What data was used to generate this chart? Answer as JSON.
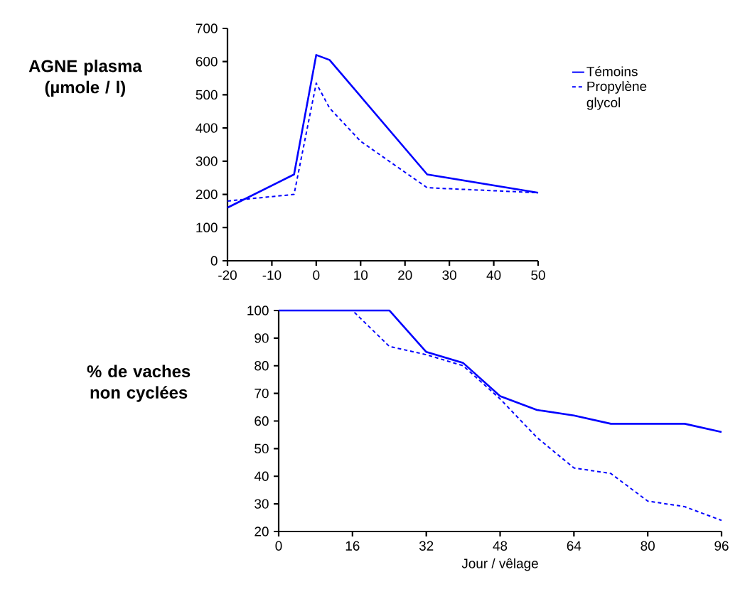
{
  "chart_data": [
    {
      "type": "line",
      "ylabel": "AGNE plasma (µmole / l)",
      "xlim": [
        -20,
        50
      ],
      "ylim": [
        0,
        700
      ],
      "xticks": [
        -20,
        -10,
        0,
        10,
        20,
        30,
        40,
        50
      ],
      "yticks": [
        0,
        100,
        200,
        300,
        400,
        500,
        600,
        700
      ],
      "legend": "right",
      "series": [
        {
          "name": "Témoins",
          "color": "#0000ff",
          "line_style": "solid",
          "x": [
            -20,
            -5,
            0,
            3,
            25,
            50
          ],
          "values": [
            160,
            260,
            620,
            605,
            260,
            205
          ]
        },
        {
          "name": "Propylène glycol",
          "color": "#0000ff",
          "line_style": "dashed",
          "x": [
            -20,
            -5,
            0,
            3,
            10,
            25,
            50
          ],
          "values": [
            180,
            200,
            535,
            460,
            360,
            220,
            205
          ]
        }
      ]
    },
    {
      "type": "line",
      "ylabel": "% de vaches non cyclées",
      "xlabel": "Jour / vêlage",
      "xlim": [
        0,
        96
      ],
      "ylim": [
        20,
        100
      ],
      "xticks": [
        0,
        16,
        32,
        48,
        64,
        80,
        96
      ],
      "yticks": [
        20,
        30,
        40,
        50,
        60,
        70,
        80,
        90,
        100
      ],
      "series": [
        {
          "color": "#0000ff",
          "line_style": "solid",
          "x": [
            0,
            24,
            32,
            40,
            48,
            56,
            64,
            72,
            88,
            96
          ],
          "values": [
            100,
            100,
            85,
            81,
            69,
            64,
            62,
            59,
            59,
            56
          ]
        },
        {
          "color": "#0000ff",
          "line_style": "dashed",
          "x": [
            0,
            16,
            24,
            32,
            40,
            48,
            56,
            64,
            72,
            80,
            88,
            96
          ],
          "values": [
            100,
            100,
            87,
            84,
            80,
            68,
            54,
            43,
            41,
            31,
            29,
            24
          ]
        }
      ]
    }
  ]
}
